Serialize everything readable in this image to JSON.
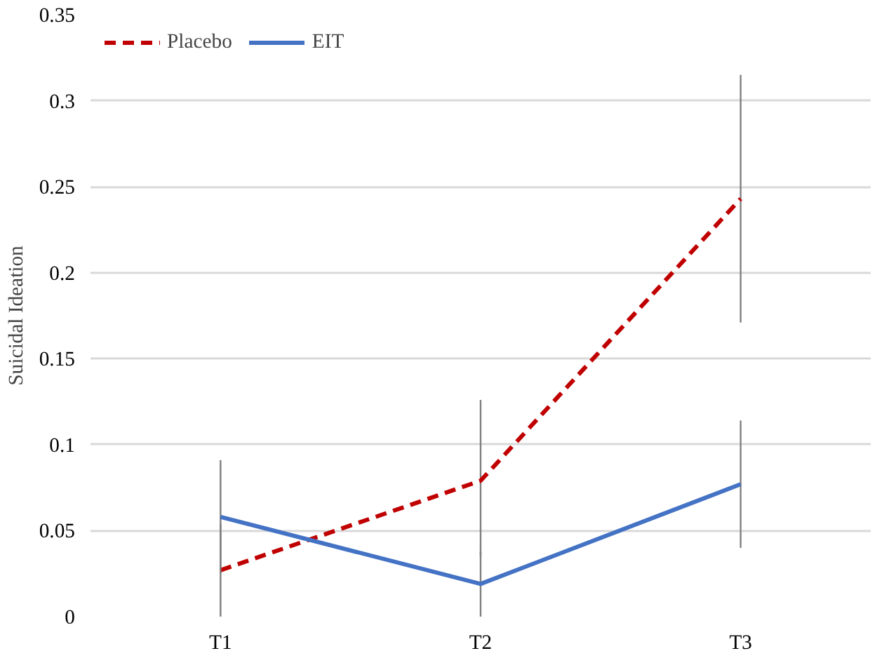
{
  "chart_data": {
    "type": "line",
    "ylabel": "Suicidal Ideation",
    "categories": [
      "T1",
      "T2",
      "T3"
    ],
    "series": [
      {
        "name": "Placebo",
        "color": "#c00000",
        "line_style": "dashed",
        "values": [
          0.027,
          0.079,
          0.243
        ],
        "errors": [
          [
            0,
            0.054
          ],
          [
            0.035,
            0.126
          ],
          [
            0.171,
            0.315
          ]
        ]
      },
      {
        "name": "EIT",
        "color": "#4472c4",
        "line_style": "solid",
        "values": [
          0.058,
          0.019,
          0.077
        ],
        "errors": [
          [
            0.025,
            0.091
          ],
          [
            0,
            0.038
          ],
          [
            0.04,
            0.114
          ]
        ]
      }
    ],
    "ylim": [
      0,
      0.35
    ],
    "yticks": [
      0,
      0.05,
      0.1,
      0.15,
      0.2,
      0.25,
      0.3,
      0.35
    ],
    "grid": "y",
    "legend": "top left",
    "marker": "none"
  }
}
